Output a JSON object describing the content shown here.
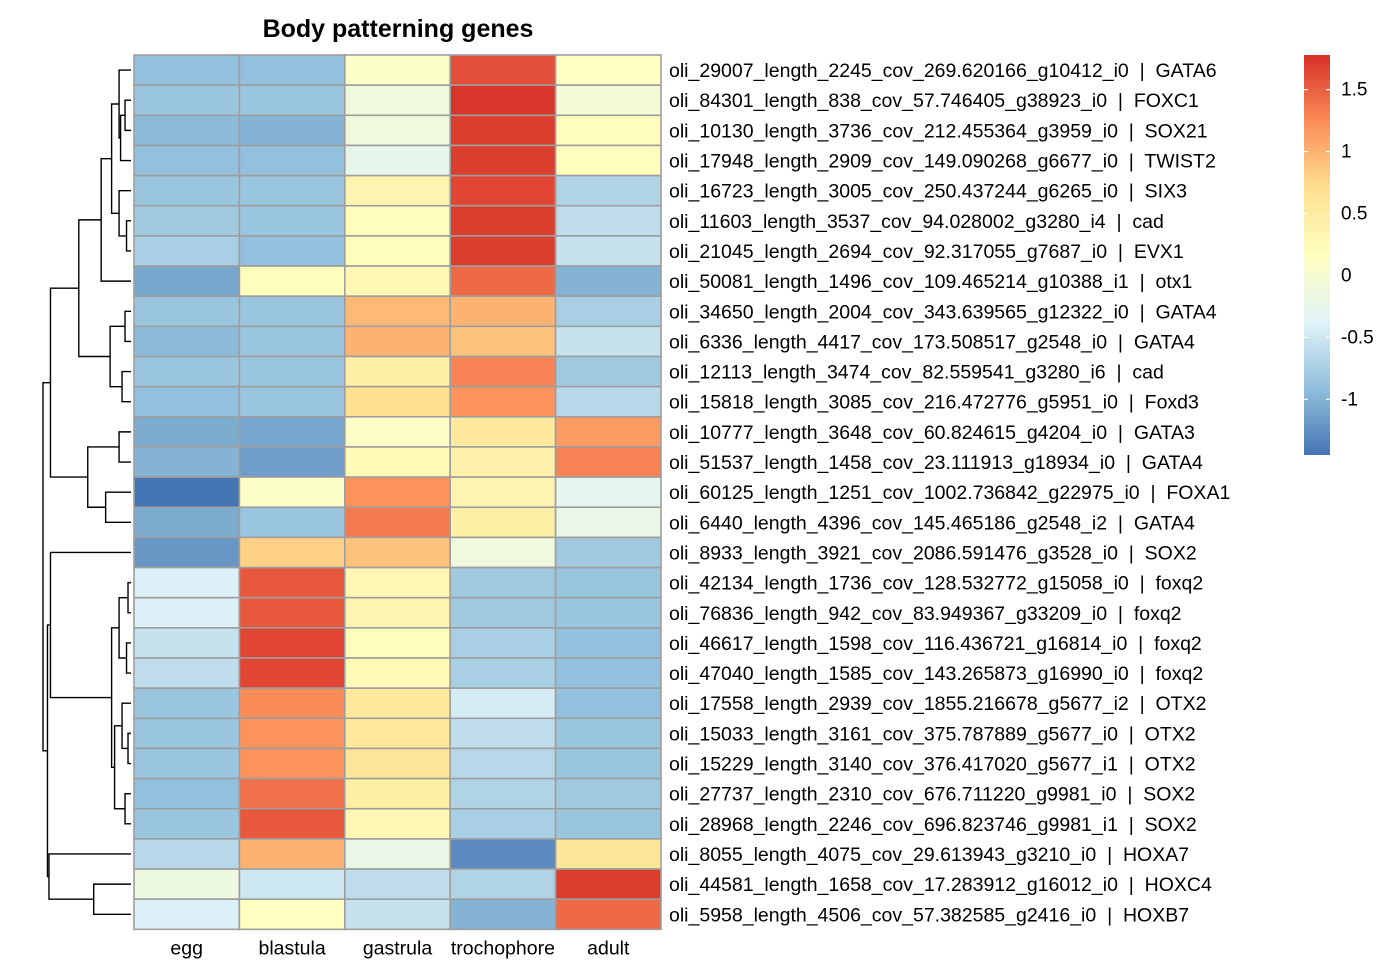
{
  "chart_data": {
    "type": "heatmap",
    "title": "Body patterning genes",
    "columns": [
      "egg",
      "blastula",
      "gastrula",
      "trochophore",
      "adult"
    ],
    "rows": [
      {
        "label": "oli_29007_length_2245_cov_269.620166_g10412_i0  |  GATA6",
        "values": [
          -0.9,
          -0.9,
          0.1,
          1.6,
          0.15
        ]
      },
      {
        "label": "oli_84301_length_838_cov_57.746405_g38923_i0  |  FOXC1",
        "values": [
          -0.85,
          -0.85,
          -0.1,
          1.75,
          -0.05
        ]
      },
      {
        "label": "oli_10130_length_3736_cov_212.455364_g3959_i0  |  SOX21",
        "values": [
          -0.95,
          -1.0,
          -0.1,
          1.7,
          0.2
        ]
      },
      {
        "label": "oli_17948_length_2909_cov_149.090268_g6677_i0  |  TWIST2",
        "values": [
          -0.9,
          -0.9,
          -0.25,
          1.7,
          0.2
        ]
      },
      {
        "label": "oli_16723_length_3005_cov_250.437244_g6265_i0  |  SIX3",
        "values": [
          -0.85,
          -0.85,
          0.35,
          1.65,
          -0.7
        ]
      },
      {
        "label": "oli_11603_length_3537_cov_94.028002_g3280_i4  |  cad",
        "values": [
          -0.8,
          -0.85,
          0.2,
          1.7,
          -0.6
        ]
      },
      {
        "label": "oli_21045_length_2694_cov_92.317055_g7687_i0  |  EVX1",
        "values": [
          -0.75,
          -0.9,
          0.2,
          1.7,
          -0.55
        ]
      },
      {
        "label": "oli_50081_length_1496_cov_109.465214_g10388_i1  |  otx1",
        "values": [
          -1.1,
          0.2,
          0.3,
          1.45,
          -1.0
        ]
      },
      {
        "label": "oli_34650_length_2004_cov_343.639565_g12322_i0  |  GATA4",
        "values": [
          -0.85,
          -0.85,
          0.95,
          1.0,
          -0.75
        ]
      },
      {
        "label": "oli_6336_length_4417_cov_173.508517_g2548_i0  |  GATA4",
        "values": [
          -0.95,
          -0.85,
          1.0,
          0.9,
          -0.55
        ]
      },
      {
        "label": "oli_12113_length_3474_cov_82.559541_g3280_i6  |  cad",
        "values": [
          -0.85,
          -0.85,
          0.45,
          1.3,
          -0.8
        ]
      },
      {
        "label": "oli_15818_length_3085_cov_216.472776_g5951_i0  |  Foxd3",
        "values": [
          -0.9,
          -0.85,
          0.7,
          1.2,
          -0.65
        ]
      },
      {
        "label": "oli_10777_length_3648_cov_60.824615_g4204_i0  |  GATA3",
        "values": [
          -1.05,
          -1.1,
          0.1,
          0.55,
          1.15
        ]
      },
      {
        "label": "oli_51537_length_1458_cov_23.111913_g18934_i0  |  GATA4",
        "values": [
          -1.0,
          -1.15,
          0.25,
          0.4,
          1.3
        ]
      },
      {
        "label": "oli_60125_length_1251_cov_1002.736842_g22975_i0  |  FOXA1",
        "values": [
          -1.45,
          0.1,
          1.2,
          0.35,
          -0.3
        ]
      },
      {
        "label": "oli_6440_length_4396_cov_145.465186_g2548_i2  |  GATA4",
        "values": [
          -1.05,
          -0.85,
          1.35,
          0.45,
          -0.2
        ]
      },
      {
        "label": "oli_8933_length_3921_cov_2086.591476_g3528_i0  |  SOX2",
        "values": [
          -1.2,
          0.8,
          0.9,
          -0.1,
          -0.8
        ]
      },
      {
        "label": "oli_42134_length_1736_cov_128.532772_g15058_i0  |  foxq2",
        "values": [
          -0.4,
          1.55,
          0.3,
          -0.8,
          -0.85
        ]
      },
      {
        "label": "oli_76836_length_942_cov_83.949367_g33209_i0  |  foxq2",
        "values": [
          -0.4,
          1.55,
          0.35,
          -0.8,
          -0.85
        ]
      },
      {
        "label": "oli_46617_length_1598_cov_116.436721_g16814_i0  |  foxq2",
        "values": [
          -0.55,
          1.65,
          0.2,
          -0.75,
          -0.9
        ]
      },
      {
        "label": "oli_47040_length_1585_cov_143.265873_g16990_i0  |  foxq2",
        "values": [
          -0.6,
          1.65,
          0.25,
          -0.75,
          -0.9
        ]
      },
      {
        "label": "oli_17558_length_2939_cov_1855.216678_g5677_i2  |  OTX2",
        "values": [
          -0.85,
          1.25,
          0.55,
          -0.45,
          -0.9
        ]
      },
      {
        "label": "oli_15033_length_3161_cov_375.787889_g5677_i0  |  OTX2",
        "values": [
          -0.85,
          1.2,
          0.55,
          -0.6,
          -0.85
        ]
      },
      {
        "label": "oli_15229_length_3140_cov_376.417020_g5677_i1  |  OTX2",
        "values": [
          -0.85,
          1.2,
          0.6,
          -0.65,
          -0.85
        ]
      },
      {
        "label": "oli_27737_length_2310_cov_676.711220_g9981_i0  |  SOX2",
        "values": [
          -0.9,
          1.4,
          0.45,
          -0.7,
          -0.8
        ]
      },
      {
        "label": "oli_28968_length_2246_cov_696.823746_g9981_i1  |  SOX2",
        "values": [
          -0.85,
          1.55,
          0.3,
          -0.75,
          -0.85
        ]
      },
      {
        "label": "oli_8055_length_4075_cov_29.613943_g3210_i0  |  HOXA7",
        "values": [
          -0.65,
          1.0,
          -0.2,
          -1.3,
          0.6
        ]
      },
      {
        "label": "oli_44581_length_1658_cov_17.283912_g16012_i0  |  HOXC4",
        "values": [
          -0.15,
          -0.5,
          -0.6,
          -0.7,
          1.7
        ]
      },
      {
        "label": "oli_5958_length_4506_cov_57.382585_g2416_i0  |  HOXB7",
        "values": [
          -0.4,
          0.15,
          -0.55,
          -1.0,
          1.45
        ]
      }
    ],
    "legend": {
      "min": -1.45,
      "max": 1.78,
      "ticks": [
        -1,
        -0.5,
        0,
        0.5,
        1,
        1.5
      ],
      "tick_labels": [
        "-1",
        "-0.5",
        "0",
        "0.5",
        "1",
        "1.5"
      ],
      "placement": "top-right",
      "colors": [
        "#4575b4",
        "#91bfdb",
        "#e0f3f8",
        "#ffffbf",
        "#fee090",
        "#fc8d59",
        "#d73027"
      ]
    },
    "grid_color": "#9e9e9e",
    "row_dendrogram": {
      "merges": [
        [
          -2,
          -3
        ],
        [
          -4,
          1
        ],
        [
          -1,
          2
        ],
        [
          -6,
          -7
        ],
        [
          -5,
          4
        ],
        [
          3,
          5
        ],
        [
          -8,
          6
        ],
        [
          -9,
          -10
        ],
        [
          -11,
          -12
        ],
        [
          8,
          9
        ],
        [
          7,
          10
        ],
        [
          -13,
          -14
        ],
        [
          -15,
          -16
        ],
        [
          12,
          13
        ],
        [
          11,
          14
        ],
        [
          -18,
          -19
        ],
        [
          -20,
          -21
        ],
        [
          16,
          17
        ],
        [
          -23,
          -24
        ],
        [
          -22,
          19
        ],
        [
          -25,
          -26
        ],
        [
          20,
          21
        ],
        [
          18,
          22
        ],
        [
          -17,
          23
        ],
        [
          -28,
          -29
        ],
        [
          -27,
          25
        ],
        [
          24,
          26
        ],
        [
          15,
          27
        ]
      ],
      "heights": [
        0.04,
        0.07,
        0.08,
        0.03,
        0.08,
        0.13,
        0.2,
        0.04,
        0.06,
        0.14,
        0.35,
        0.08,
        0.17,
        0.29,
        0.54,
        0.02,
        0.03,
        0.08,
        0.02,
        0.06,
        0.04,
        0.11,
        0.13,
        0.54,
        0.25,
        0.55,
        0.56,
        0.59
      ]
    }
  }
}
